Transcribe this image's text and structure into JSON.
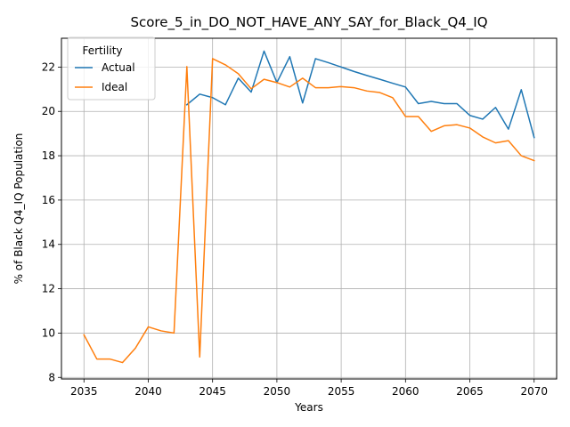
{
  "chart_data": {
    "type": "line",
    "title": "Score_5_in_DO_NOT_HAVE_ANY_SAY_for_Black_Q4_IQ",
    "xlabel": "Years",
    "ylabel": "% of Black Q4_IQ Population",
    "xlim": [
      2033.25,
      2071.75
    ],
    "ylim": [
      7.93,
      23.3
    ],
    "xticks": [
      2035,
      2040,
      2045,
      2050,
      2055,
      2060,
      2065,
      2070
    ],
    "yticks": [
      8,
      10,
      12,
      14,
      16,
      18,
      20,
      22
    ],
    "grid": true,
    "legend": {
      "title": "Fertility",
      "placement": "upper-left"
    },
    "series": [
      {
        "name": "Actual",
        "color": "#1f77b4",
        "x": [
          2043,
          2044,
          2045,
          2046,
          2047,
          2048,
          2049,
          2050,
          2051,
          2052,
          2053,
          2054,
          2055,
          2056,
          2057,
          2058,
          2059,
          2060,
          2061,
          2062,
          2063,
          2064,
          2065,
          2066,
          2067,
          2068,
          2069,
          2070
        ],
        "values": [
          20.3,
          20.78,
          20.62,
          20.3,
          21.5,
          20.87,
          22.72,
          21.3,
          22.47,
          20.38,
          22.38,
          22.2,
          22.0,
          21.8,
          21.62,
          21.45,
          21.27,
          21.1,
          20.35,
          20.45,
          20.35,
          20.35,
          19.82,
          19.65,
          20.18,
          19.2,
          20.98,
          18.82
        ]
      },
      {
        "name": "Ideal",
        "color": "#ff7f0e",
        "x": [
          2035,
          2036,
          2037,
          2038,
          2039,
          2040,
          2041,
          2042,
          2043,
          2044,
          2045,
          2046,
          2047,
          2048,
          2049,
          2050,
          2051,
          2052,
          2053,
          2054,
          2055,
          2056,
          2057,
          2058,
          2059,
          2060,
          2061,
          2062,
          2063,
          2064,
          2065,
          2066,
          2067,
          2068,
          2069,
          2070
        ],
        "values": [
          9.92,
          8.83,
          8.83,
          8.67,
          9.32,
          10.28,
          10.1,
          10.0,
          22.02,
          8.92,
          22.38,
          22.1,
          21.7,
          21.02,
          21.45,
          21.3,
          21.1,
          21.5,
          21.07,
          21.07,
          21.12,
          21.07,
          20.92,
          20.85,
          20.62,
          19.77,
          19.77,
          19.1,
          19.35,
          19.4,
          19.25,
          18.85,
          18.58,
          18.68,
          18.0,
          17.78
        ]
      }
    ]
  }
}
